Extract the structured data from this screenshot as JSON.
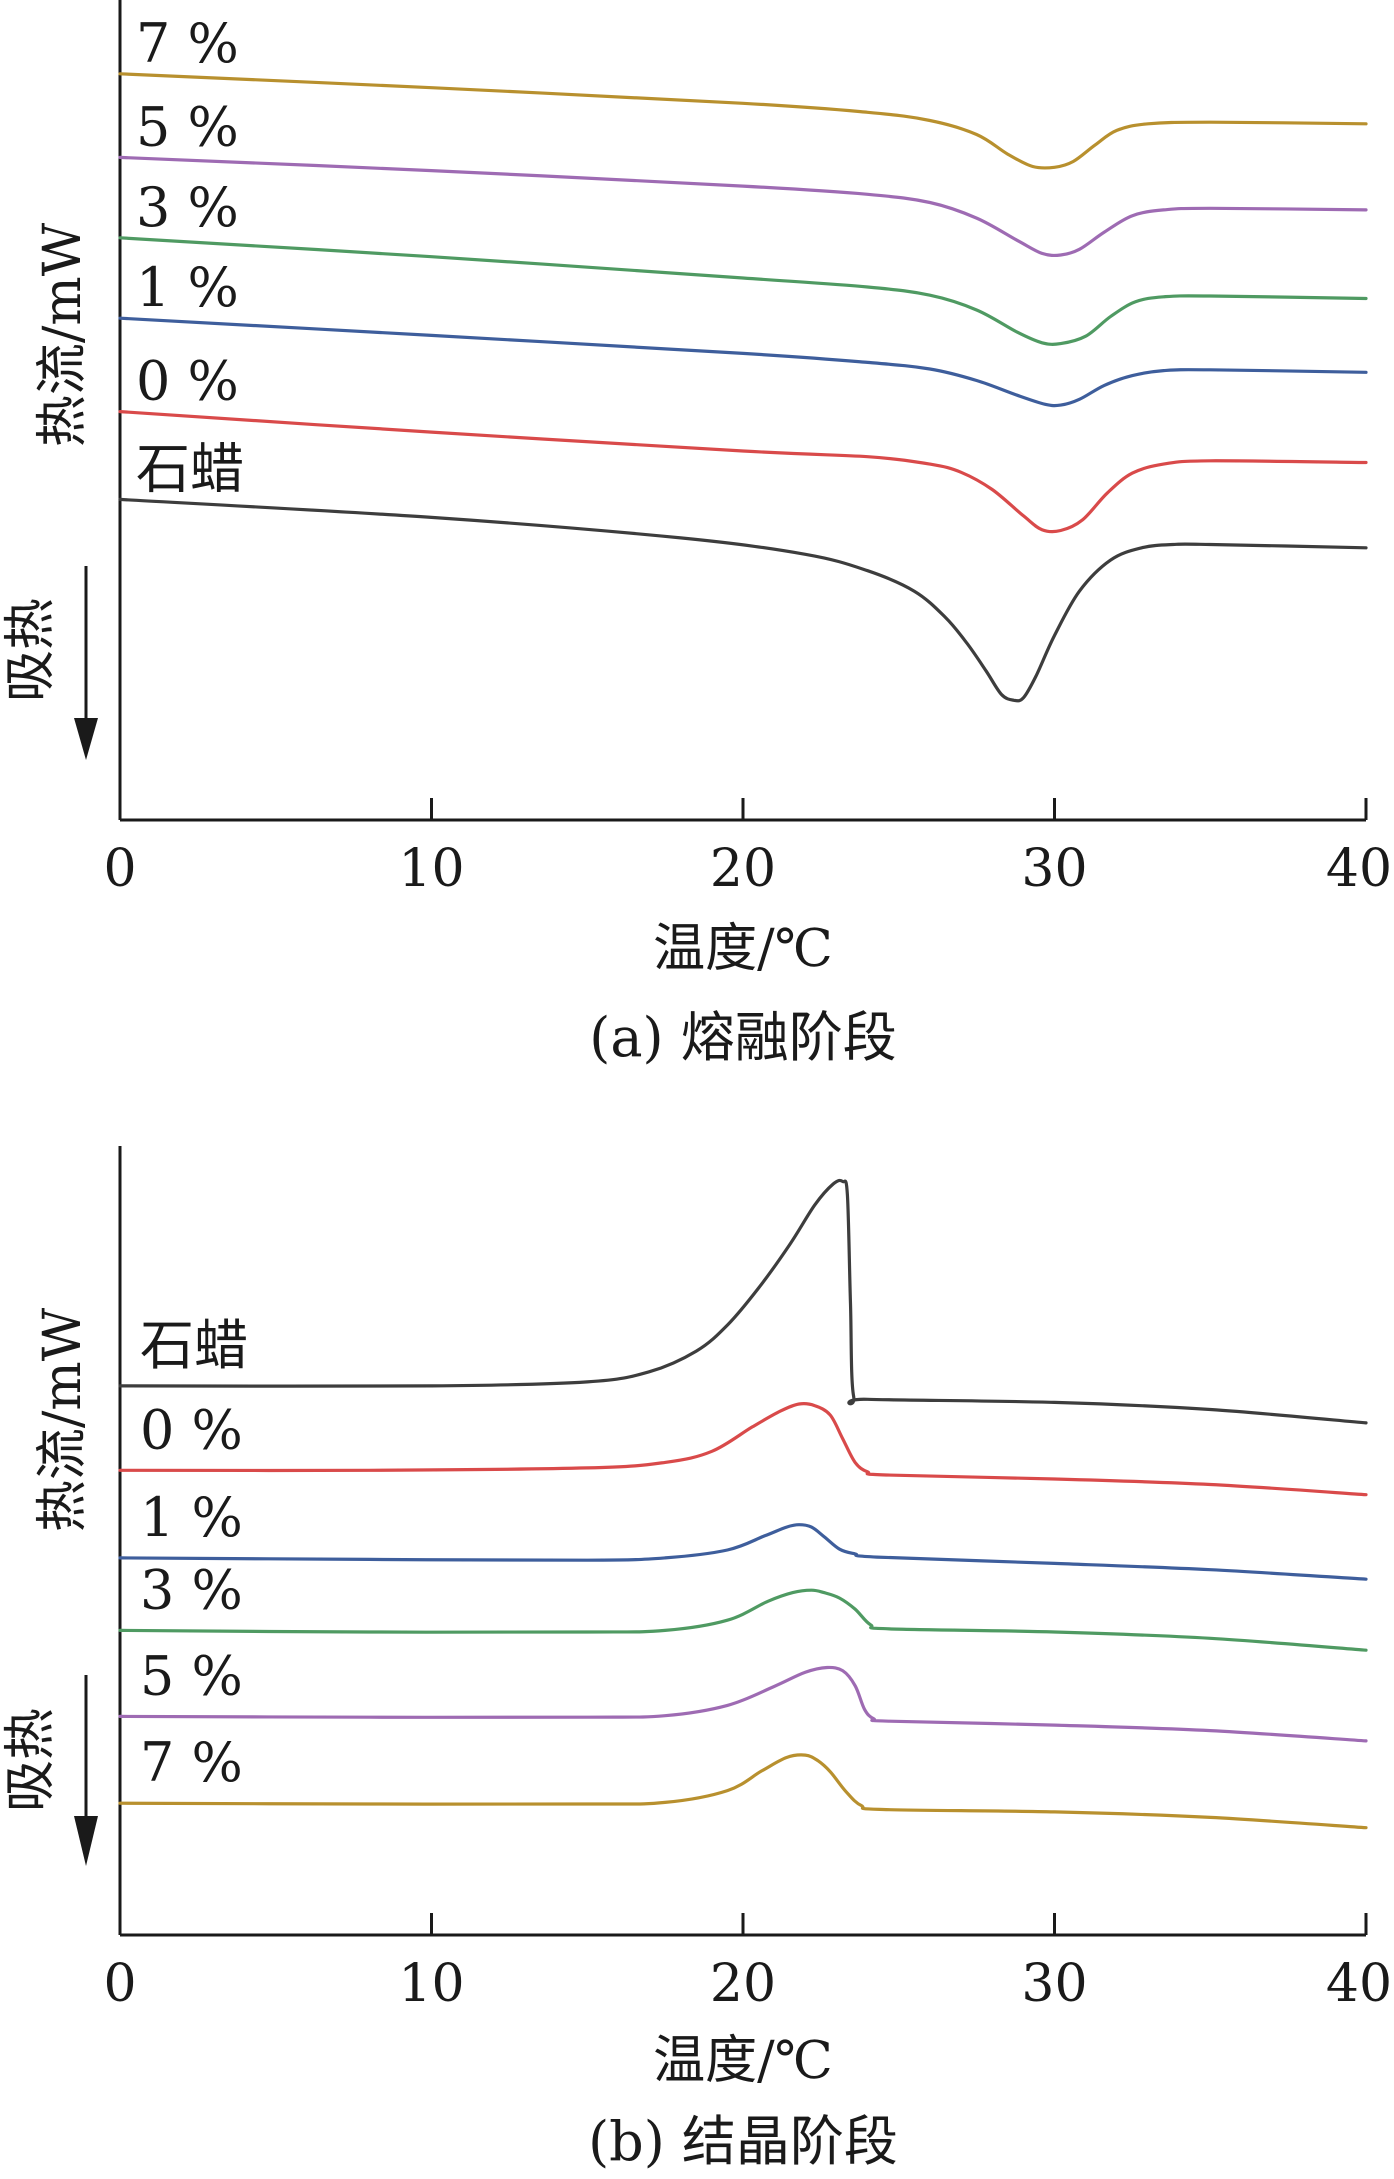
{
  "chart_data": [
    {
      "type": "line",
      "caption": "(a) 熔融阶段",
      "xlabel": "温度/℃",
      "ylabel": "热流/mW",
      "direction_label": "吸热",
      "xlim": [
        0,
        40
      ],
      "xticks": [
        0,
        10,
        20,
        30,
        40
      ],
      "yrange": [
        0,
        100
      ],
      "grid": false,
      "series": [
        {
          "name": "7 %",
          "color": "#b8902e",
          "x": [
            0,
            10,
            20,
            24,
            26,
            27.5,
            28.5,
            29.3,
            30,
            30.6,
            31.3,
            32,
            33,
            35,
            40
          ],
          "y": [
            91,
            89.3,
            87.4,
            86.3,
            85.3,
            83.6,
            81.2,
            79.7,
            79.6,
            80.3,
            82.3,
            84.1,
            84.9,
            85.1,
            84.9
          ]
        },
        {
          "name": "5 %",
          "color": "#9e6bb3",
          "x": [
            0,
            10,
            20,
            24,
            26,
            27.5,
            28.8,
            29.6,
            30.2,
            30.8,
            31.6,
            32.5,
            33.5,
            35,
            40
          ],
          "y": [
            80.8,
            79.2,
            77.3,
            76.3,
            75.3,
            73.4,
            70.7,
            69.1,
            68.9,
            69.6,
            71.7,
            73.7,
            74.4,
            74.6,
            74.4
          ]
        },
        {
          "name": "3 %",
          "color": "#4f9a62",
          "x": [
            0,
            10,
            20,
            24,
            26,
            27.5,
            28.8,
            29.6,
            30.2,
            31,
            31.8,
            32.6,
            33.5,
            35,
            40
          ],
          "y": [
            71,
            68.7,
            66.1,
            65,
            64,
            62.2,
            59.5,
            58.2,
            58.1,
            59,
            61.4,
            63.2,
            63.8,
            63.9,
            63.6
          ]
        },
        {
          "name": "1 %",
          "color": "#3e5e9c",
          "x": [
            0,
            10,
            20,
            24,
            26,
            27.5,
            28.8,
            29.7,
            30.2,
            30.8,
            31.6,
            32.5,
            33.5,
            35,
            40
          ],
          "y": [
            61.2,
            59.1,
            56.9,
            55.8,
            55,
            53.6,
            51.8,
            50.7,
            50.6,
            51.3,
            53,
            54.2,
            54.8,
            54.9,
            54.6
          ]
        },
        {
          "name": "0 %",
          "color": "#d94a4a",
          "x": [
            0,
            10,
            20,
            24,
            26,
            27,
            28,
            29,
            29.6,
            30.2,
            30.9,
            31.7,
            32.5,
            33.5,
            35,
            40
          ],
          "y": [
            49.8,
            47.3,
            45,
            44.3,
            43.4,
            42.4,
            40.3,
            37.1,
            35.4,
            35.3,
            36.6,
            39.9,
            42.3,
            43.4,
            43.8,
            43.6
          ]
        },
        {
          "name": "石蜡",
          "color": "#3d3d3d",
          "x": [
            0,
            10,
            18,
            22,
            24,
            25.5,
            26.5,
            27.2,
            27.8,
            28.3,
            28.7,
            29,
            29.4,
            30,
            30.8,
            31.8,
            32.8,
            33.8,
            35,
            40
          ],
          "y": [
            39.1,
            36.9,
            34.4,
            32.4,
            30.4,
            27.9,
            24.7,
            21.5,
            18.2,
            15.3,
            14.6,
            14.9,
            17.5,
            22.5,
            27.9,
            31.7,
            33.2,
            33.6,
            33.6,
            33.2
          ]
        }
      ]
    },
    {
      "type": "line",
      "caption": "(b) 结晶阶段",
      "xlabel": "温度/℃",
      "ylabel": "热流/mW",
      "direction_label": "吸热",
      "xlim": [
        0,
        40
      ],
      "xticks": [
        0,
        10,
        20,
        30,
        40
      ],
      "yrange": [
        0,
        100
      ],
      "grid": false,
      "series": [
        {
          "name": "石蜡",
          "color": "#3d3d3d",
          "x": [
            0,
            10,
            15,
            17,
            18.5,
            19.5,
            20.5,
            21.5,
            22.3,
            22.9,
            23.2,
            23.35,
            23.45,
            23.55,
            24,
            30,
            35,
            40
          ],
          "y": [
            69.6,
            69.6,
            70.1,
            71.4,
            74,
            77.3,
            82,
            87.5,
            92.5,
            95.2,
            95.5,
            93.8,
            80,
            68.3,
            67.9,
            67.5,
            66.6,
            64.9
          ]
        },
        {
          "name": "0 %",
          "color": "#d94a4a",
          "x": [
            0,
            8,
            15,
            17.5,
            19,
            20.3,
            21.2,
            21.8,
            22.3,
            22.8,
            23.2,
            23.6,
            24,
            24.6,
            30,
            35,
            40
          ],
          "y": [
            58.9,
            58.9,
            59.2,
            59.9,
            61.3,
            64.4,
            66.4,
            67.3,
            67.1,
            65.9,
            62.9,
            59.9,
            58.7,
            58.3,
            57.8,
            57.1,
            55.8
          ]
        },
        {
          "name": "1 %",
          "color": "#3e5e9c",
          "x": [
            0,
            8,
            15,
            17.5,
            19.5,
            20.7,
            21.4,
            21.8,
            22.2,
            22.6,
            23.1,
            23.6,
            24.3,
            30,
            35,
            40
          ],
          "y": [
            47.8,
            47.6,
            47.5,
            47.8,
            48.8,
            50.6,
            51.7,
            52,
            51.7,
            50.5,
            48.9,
            48.3,
            47.9,
            47.1,
            46.3,
            45.1
          ]
        },
        {
          "name": "3 %",
          "color": "#4f9a62",
          "x": [
            0,
            8,
            15,
            17.5,
            19.5,
            20.8,
            21.6,
            22.2,
            22.6,
            23.1,
            23.6,
            24.1,
            24.7,
            30,
            35,
            40
          ],
          "y": [
            38.6,
            38.4,
            38.4,
            38.6,
            39.9,
            42.3,
            43.4,
            43.7,
            43.4,
            42.7,
            41.3,
            39.3,
            38.8,
            38.4,
            37.6,
            36.1
          ]
        },
        {
          "name": "5 %",
          "color": "#9e6bb3",
          "x": [
            0,
            8,
            15,
            17.5,
            19.5,
            21,
            22,
            22.7,
            23.2,
            23.6,
            23.9,
            24.2,
            24.7,
            30,
            35,
            40
          ],
          "y": [
            27.7,
            27.6,
            27.6,
            27.8,
            29.1,
            31.5,
            33.3,
            33.9,
            33.5,
            31.6,
            28.6,
            27.4,
            27.1,
            26.6,
            25.9,
            24.6
          ]
        },
        {
          "name": "7 %",
          "color": "#b8902e",
          "x": [
            0,
            8,
            15,
            17.5,
            19.5,
            20.6,
            21.4,
            22,
            22.4,
            22.8,
            23.3,
            23.8,
            24.5,
            30,
            35,
            40
          ],
          "y": [
            16.7,
            16.6,
            16.6,
            16.8,
            18.3,
            20.8,
            22.5,
            22.8,
            22.1,
            20.7,
            18.2,
            16.4,
            15.9,
            15.6,
            14.9,
            13.6
          ]
        }
      ]
    }
  ]
}
